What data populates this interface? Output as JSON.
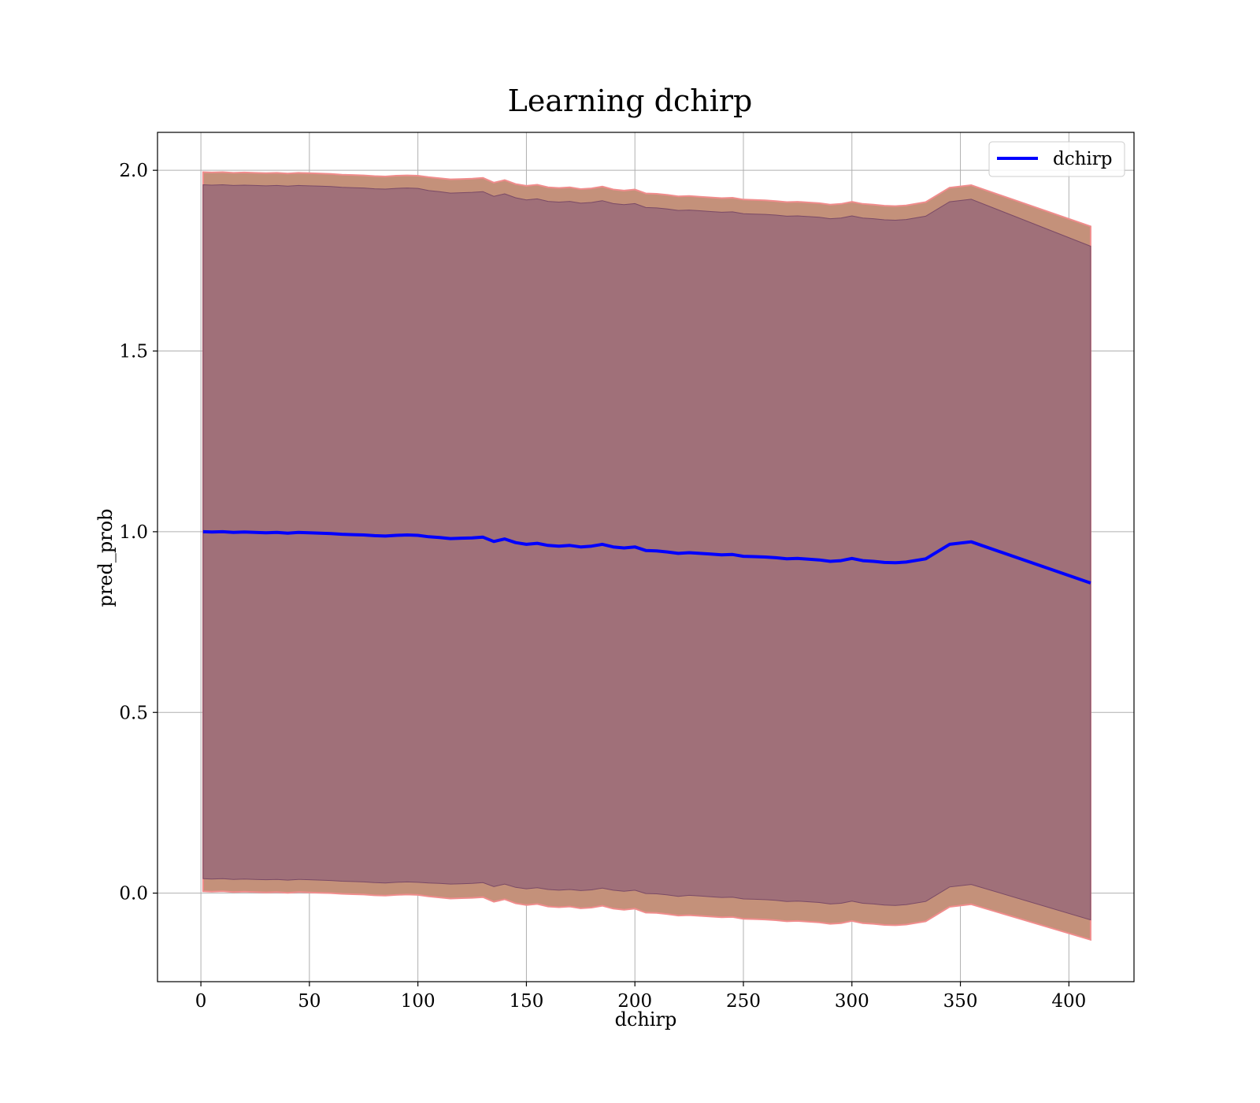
{
  "chart_data": {
    "type": "line",
    "title": "Learning dchirp",
    "xlabel": "dchirp",
    "ylabel": "pred_prob",
    "xlim": [
      -20,
      430
    ],
    "ylim": [
      -0.245,
      2.105
    ],
    "x_ticks": [
      0,
      50,
      100,
      150,
      200,
      250,
      300,
      350,
      400
    ],
    "x_tick_labels": [
      "0",
      "50",
      "100",
      "150",
      "200",
      "250",
      "300",
      "350",
      "400"
    ],
    "y_ticks": [
      0.0,
      0.5,
      1.0,
      1.5,
      2.0
    ],
    "y_tick_labels": [
      "0.0",
      "0.5",
      "1.0",
      "1.5",
      "2.0"
    ],
    "grid": true,
    "legend": {
      "position": "top-right",
      "entries": [
        "dchirp"
      ]
    },
    "colors": {
      "line": "#0000ff",
      "outer_band": "#c4917a",
      "outer_band_edge": "#f08c8c",
      "inner_band": "#a07079",
      "inner_band_edge": "#7a4a66",
      "grid": "#b0b0b0"
    },
    "series": [
      {
        "name": "dchirp",
        "x": [
          1,
          5,
          10,
          15,
          20,
          25,
          30,
          35,
          40,
          45,
          50,
          55,
          60,
          65,
          70,
          75,
          80,
          85,
          90,
          95,
          100,
          105,
          110,
          115,
          120,
          125,
          130,
          135,
          140,
          145,
          150,
          155,
          160,
          165,
          170,
          175,
          180,
          185,
          190,
          195,
          200,
          205,
          210,
          215,
          220,
          225,
          230,
          235,
          240,
          245,
          250,
          255,
          260,
          265,
          270,
          275,
          280,
          285,
          290,
          295,
          300,
          305,
          310,
          315,
          320,
          325,
          334,
          345,
          355,
          410
        ],
        "y": [
          1.0,
          0.999,
          1.0,
          0.998,
          0.999,
          0.998,
          0.997,
          0.998,
          0.996,
          0.998,
          0.997,
          0.996,
          0.995,
          0.993,
          0.992,
          0.991,
          0.989,
          0.988,
          0.99,
          0.991,
          0.99,
          0.986,
          0.984,
          0.981,
          0.982,
          0.983,
          0.985,
          0.973,
          0.98,
          0.97,
          0.965,
          0.968,
          0.962,
          0.96,
          0.962,
          0.958,
          0.96,
          0.965,
          0.958,
          0.955,
          0.958,
          0.948,
          0.947,
          0.944,
          0.94,
          0.942,
          0.94,
          0.938,
          0.936,
          0.937,
          0.932,
          0.931,
          0.93,
          0.928,
          0.925,
          0.926,
          0.924,
          0.922,
          0.918,
          0.92,
          0.926,
          0.92,
          0.918,
          0.915,
          0.914,
          0.916,
          0.925,
          0.965,
          0.972,
          0.858
        ],
        "outer_upper": [
          1.995,
          1.994,
          1.995,
          1.993,
          1.994,
          1.993,
          1.992,
          1.993,
          1.991,
          1.993,
          1.992,
          1.991,
          1.99,
          1.988,
          1.987,
          1.986,
          1.984,
          1.983,
          1.985,
          1.986,
          1.985,
          1.981,
          1.978,
          1.975,
          1.976,
          1.977,
          1.979,
          1.966,
          1.973,
          1.962,
          1.957,
          1.96,
          1.953,
          1.951,
          1.953,
          1.948,
          1.95,
          1.955,
          1.947,
          1.944,
          1.947,
          1.936,
          1.935,
          1.932,
          1.928,
          1.929,
          1.927,
          1.925,
          1.923,
          1.924,
          1.919,
          1.918,
          1.917,
          1.915,
          1.912,
          1.913,
          1.911,
          1.909,
          1.905,
          1.907,
          1.913,
          1.907,
          1.905,
          1.902,
          1.901,
          1.903,
          1.912,
          1.952,
          1.959,
          1.845
        ],
        "inner_upper": [
          1.96,
          1.959,
          1.96,
          1.958,
          1.959,
          1.958,
          1.957,
          1.958,
          1.956,
          1.958,
          1.957,
          1.956,
          1.955,
          1.953,
          1.952,
          1.951,
          1.949,
          1.948,
          1.95,
          1.951,
          1.95,
          1.944,
          1.941,
          1.937,
          1.938,
          1.939,
          1.941,
          1.928,
          1.935,
          1.924,
          1.918,
          1.921,
          1.914,
          1.912,
          1.914,
          1.909,
          1.911,
          1.916,
          1.908,
          1.905,
          1.908,
          1.897,
          1.896,
          1.893,
          1.889,
          1.89,
          1.888,
          1.886,
          1.884,
          1.885,
          1.88,
          1.879,
          1.878,
          1.876,
          1.873,
          1.874,
          1.872,
          1.87,
          1.866,
          1.868,
          1.874,
          1.868,
          1.866,
          1.863,
          1.862,
          1.864,
          1.873,
          1.913,
          1.92,
          1.79
        ],
        "inner_lower": [
          0.04,
          0.039,
          0.04,
          0.038,
          0.039,
          0.038,
          0.037,
          0.038,
          0.036,
          0.038,
          0.037,
          0.036,
          0.035,
          0.033,
          0.032,
          0.031,
          0.029,
          0.028,
          0.03,
          0.031,
          0.03,
          0.028,
          0.027,
          0.025,
          0.026,
          0.027,
          0.029,
          0.018,
          0.025,
          0.016,
          0.012,
          0.015,
          0.01,
          0.008,
          0.01,
          0.007,
          0.009,
          0.014,
          0.008,
          0.005,
          0.008,
          -0.001,
          -0.002,
          -0.005,
          -0.009,
          -0.006,
          -0.008,
          -0.01,
          -0.012,
          -0.011,
          -0.016,
          -0.017,
          -0.018,
          -0.02,
          -0.023,
          -0.022,
          -0.024,
          -0.026,
          -0.03,
          -0.028,
          -0.022,
          -0.028,
          -0.03,
          -0.033,
          -0.034,
          -0.032,
          -0.023,
          0.017,
          0.024,
          -0.074
        ],
        "outer_lower": [
          0.005,
          0.004,
          0.005,
          0.003,
          0.004,
          0.003,
          0.002,
          0.003,
          0.001,
          0.003,
          0.002,
          0.001,
          0.0,
          -0.002,
          -0.003,
          -0.004,
          -0.006,
          -0.007,
          -0.005,
          -0.004,
          -0.005,
          -0.009,
          -0.012,
          -0.015,
          -0.014,
          -0.013,
          -0.011,
          -0.024,
          -0.017,
          -0.028,
          -0.033,
          -0.03,
          -0.037,
          -0.039,
          -0.037,
          -0.042,
          -0.04,
          -0.035,
          -0.043,
          -0.046,
          -0.043,
          -0.054,
          -0.055,
          -0.058,
          -0.062,
          -0.061,
          -0.063,
          -0.065,
          -0.067,
          -0.066,
          -0.071,
          -0.072,
          -0.073,
          -0.075,
          -0.078,
          -0.077,
          -0.079,
          -0.081,
          -0.085,
          -0.083,
          -0.077,
          -0.083,
          -0.085,
          -0.088,
          -0.089,
          -0.087,
          -0.078,
          -0.038,
          -0.031,
          -0.129
        ]
      }
    ]
  }
}
